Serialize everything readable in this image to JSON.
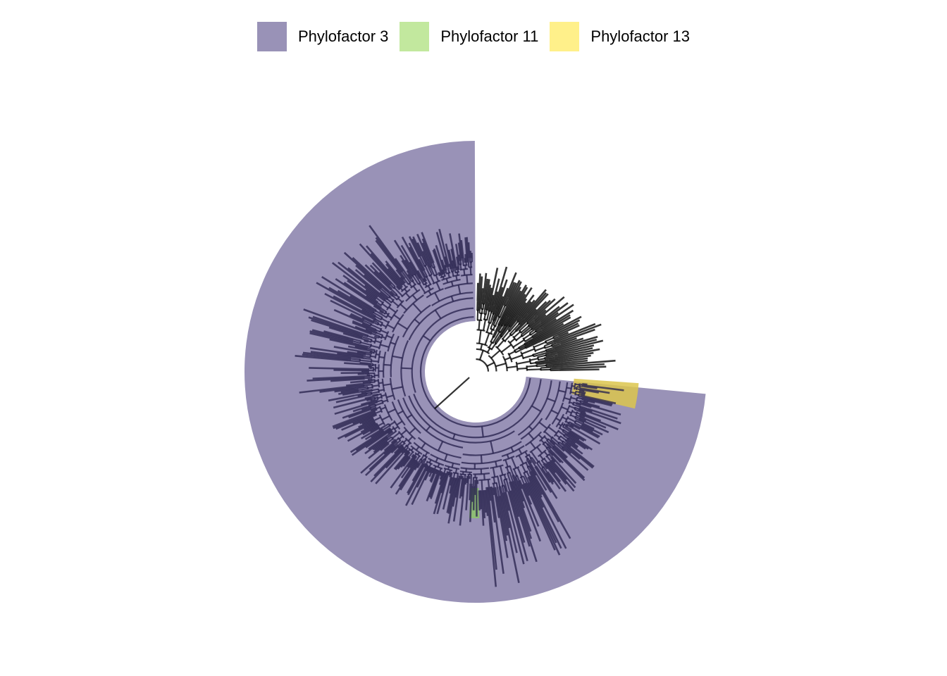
{
  "figure": {
    "type": "circular-phylogenetic-tree"
  },
  "legend": {
    "items": [
      {
        "label": "Phylofactor 3",
        "color": "#9992b7"
      },
      {
        "label": "Phylofactor 11",
        "color": "#c2e89e"
      },
      {
        "label": "Phylofactor 13",
        "color": "#fff08a"
      }
    ]
  },
  "colors": {
    "branch": "#000000",
    "branch_in_clade": "#2a2550",
    "clade_3": "#9992b7",
    "clade_11": "#8dc26e",
    "clade_13": "#dcc64e"
  }
}
